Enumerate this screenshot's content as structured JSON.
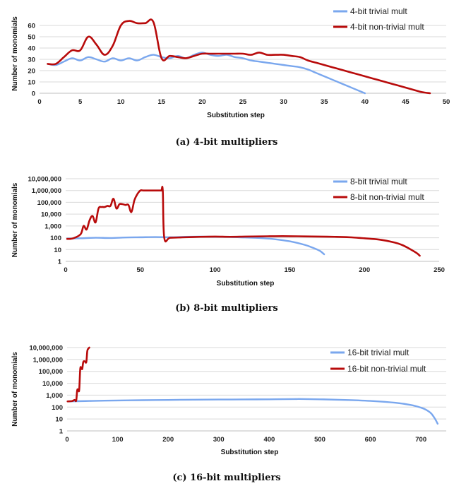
{
  "colors": {
    "trivial": "#7aa7ee",
    "nontrivial": "#b80b0b"
  },
  "chart_data": [
    {
      "type": "line",
      "caption": "(a) 4-bit multipliers",
      "xlabel": "Substitution step",
      "ylabel": "Number of monomials",
      "xlim": [
        0,
        50
      ],
      "ylim": [
        0,
        70
      ],
      "yscale": "linear",
      "grid": true,
      "legend_position": "top-right",
      "x_ticks": [
        "0",
        "5",
        "10",
        "15",
        "20",
        "25",
        "30",
        "35",
        "40",
        "45",
        "50"
      ],
      "y_ticks": [
        "0",
        "10",
        "20",
        "30",
        "40",
        "50",
        "60"
      ],
      "series": [
        {
          "name": "4-bit trivial mult",
          "color": "#7aa7ee",
          "x": [
            1,
            2,
            3,
            4,
            5,
            6,
            7,
            8,
            9,
            10,
            11,
            12,
            13,
            14,
            15,
            16,
            17,
            18,
            19,
            20,
            21,
            22,
            23,
            24,
            25,
            26,
            27,
            28,
            29,
            30,
            31,
            32,
            33,
            34,
            35,
            36,
            37,
            38,
            39,
            40
          ],
          "y": [
            26,
            25,
            28,
            31,
            29,
            32,
            30,
            28,
            31,
            29,
            31,
            29,
            32,
            34,
            32,
            31,
            33,
            31,
            34,
            36,
            34,
            33,
            34,
            32,
            31,
            29,
            28,
            27,
            26,
            25,
            24,
            23,
            21,
            18,
            15,
            12,
            9,
            6,
            3,
            0
          ]
        },
        {
          "name": "4-bit non-trivial mult",
          "color": "#b80b0b",
          "x": [
            1,
            2,
            3,
            4,
            5,
            6,
            7,
            8,
            9,
            10,
            11,
            12,
            13,
            14,
            15,
            16,
            17,
            18,
            19,
            20,
            21,
            22,
            23,
            24,
            25,
            26,
            27,
            28,
            29,
            30,
            31,
            32,
            33,
            34,
            35,
            36,
            37,
            38,
            39,
            40,
            41,
            42,
            43,
            44,
            45,
            46,
            47,
            48
          ],
          "y": [
            26,
            26,
            32,
            38,
            38,
            50,
            43,
            34,
            42,
            60,
            64,
            62,
            62,
            63,
            31,
            33,
            32,
            31,
            33,
            35,
            35,
            35,
            35,
            35,
            35,
            34,
            36,
            34,
            34,
            34,
            33,
            32,
            29,
            27,
            25,
            23,
            21,
            19,
            17,
            15,
            13,
            11,
            9,
            7,
            5,
            3,
            1,
            0
          ]
        }
      ]
    },
    {
      "type": "line",
      "caption": "(b) 8-bit multipliers",
      "xlabel": "Substitution step",
      "ylabel": "Number of monomials",
      "xlim": [
        0,
        250
      ],
      "ylim": [
        1,
        10000000
      ],
      "yscale": "log",
      "grid": true,
      "legend_position": "top-right",
      "x_ticks": [
        "0",
        "50",
        "100",
        "150",
        "200",
        "250"
      ],
      "y_ticks": [
        "1",
        "10",
        "100",
        "1,000",
        "10,000",
        "100,000",
        "1,000,000",
        "10,000,000"
      ],
      "series": [
        {
          "name": "8-bit trivial mult",
          "color": "#7aa7ee",
          "x": [
            1,
            10,
            20,
            30,
            40,
            50,
            60,
            70,
            80,
            90,
            100,
            110,
            120,
            130,
            140,
            150,
            160,
            165,
            170,
            173
          ],
          "y": [
            85,
            90,
            100,
            95,
            105,
            110,
            115,
            110,
            120,
            125,
            120,
            115,
            105,
            95,
            75,
            50,
            25,
            15,
            8,
            4
          ]
        },
        {
          "name": "8-bit non-trivial mult",
          "color": "#b80b0b",
          "x": [
            1,
            5,
            10,
            12,
            14,
            16,
            18,
            20,
            22,
            24,
            26,
            28,
            30,
            32,
            34,
            36,
            38,
            40,
            42,
            44,
            46,
            48,
            50,
            52,
            54,
            56,
            58,
            60,
            62,
            64,
            65,
            66,
            70,
            80,
            90,
            100,
            110,
            120,
            130,
            140,
            150,
            160,
            170,
            180,
            190,
            200,
            210,
            220,
            225,
            230,
            235,
            237
          ],
          "y": [
            80,
            90,
            200,
            1000,
            500,
            3000,
            7000,
            2000,
            30000,
            40000,
            40000,
            50000,
            50000,
            200000,
            30000,
            70000,
            70000,
            60000,
            60000,
            15000,
            150000,
            500000,
            1000000,
            1000000,
            1000000,
            1000000,
            1000000,
            1000000,
            1000000,
            1000000,
            1000000,
            100,
            100,
            110,
            120,
            125,
            120,
            125,
            130,
            135,
            135,
            130,
            125,
            120,
            110,
            90,
            70,
            40,
            25,
            12,
            5,
            3
          ]
        }
      ]
    },
    {
      "type": "line",
      "caption": "(c) 16-bit multipliers",
      "xlabel": "Substitution step",
      "ylabel": "Number of monomials",
      "xlim": [
        0,
        750
      ],
      "ylim": [
        1,
        10000000
      ],
      "yscale": "log",
      "grid": true,
      "legend_position": "top-right",
      "x_ticks": [
        "0",
        "100",
        "200",
        "300",
        "400",
        "500",
        "600",
        "700"
      ],
      "y_ticks": [
        "1",
        "10",
        "100",
        "1,000",
        "10,000",
        "100,000",
        "1,000,000",
        "10,000,000"
      ],
      "series": [
        {
          "name": "16-bit trivial mult",
          "color": "#7aa7ee",
          "x": [
            1,
            50,
            100,
            150,
            200,
            250,
            300,
            350,
            400,
            450,
            460,
            500,
            550,
            600,
            650,
            680,
            700,
            710,
            720,
            728,
            733
          ],
          "y": [
            300,
            330,
            360,
            380,
            400,
            420,
            430,
            440,
            450,
            470,
            480,
            450,
            400,
            330,
            230,
            150,
            90,
            60,
            30,
            10,
            4
          ]
        },
        {
          "name": "16-bit non-trivial mult",
          "color": "#b80b0b",
          "x": [
            1,
            10,
            15,
            18,
            20,
            22,
            24,
            26,
            28,
            30,
            32,
            35,
            38,
            40,
            42,
            44
          ],
          "y": [
            300,
            320,
            400,
            350,
            2500,
            3000,
            2800,
            150000,
            200000,
            160000,
            600000,
            700000,
            600000,
            5000000,
            8000000,
            10000000
          ]
        }
      ]
    }
  ]
}
